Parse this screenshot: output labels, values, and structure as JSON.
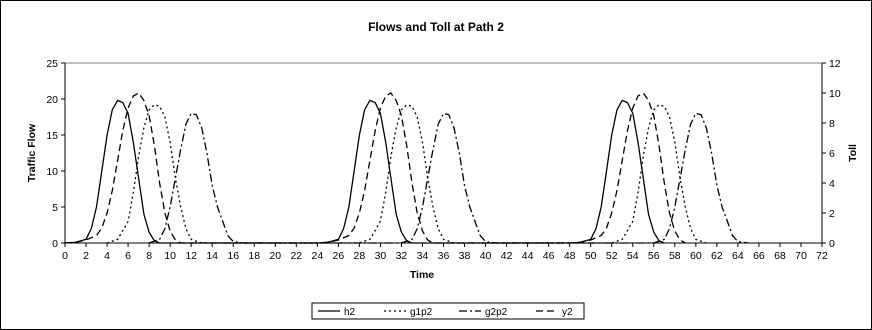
{
  "chart_data": {
    "type": "line",
    "title": "Flows and Toll at Path 2",
    "xlabel": "Time",
    "ylabel": "Traffic Flow",
    "y2label": "Toll",
    "xlim": [
      0,
      72
    ],
    "ylim": [
      0,
      25
    ],
    "y2lim": [
      0,
      12
    ],
    "x_ticks": [
      0,
      2,
      4,
      6,
      8,
      10,
      12,
      14,
      16,
      18,
      20,
      22,
      24,
      26,
      28,
      30,
      32,
      34,
      36,
      38,
      40,
      42,
      44,
      46,
      48,
      50,
      52,
      54,
      56,
      58,
      60,
      62,
      64,
      66,
      68,
      70,
      72
    ],
    "y_ticks": [
      0,
      5,
      10,
      15,
      20,
      25
    ],
    "y2_ticks": [
      0,
      2,
      4,
      6,
      8,
      10,
      12
    ],
    "grid": false,
    "legend_position": "bottom",
    "series": [
      {
        "name": "h2",
        "axis": "left",
        "dash": "solid",
        "points": [
          [
            0,
            0
          ],
          [
            1,
            0.1
          ],
          [
            2,
            0.5
          ],
          [
            2.5,
            2
          ],
          [
            3,
            5
          ],
          [
            3.5,
            10
          ],
          [
            4,
            15
          ],
          [
            4.5,
            18.5
          ],
          [
            5,
            19.8
          ],
          [
            5.5,
            19.5
          ],
          [
            6,
            18
          ],
          [
            6.5,
            14
          ],
          [
            7,
            9
          ],
          [
            7.5,
            4
          ],
          [
            8,
            1.5
          ],
          [
            8.5,
            0.3
          ],
          [
            9,
            0
          ],
          [
            24,
            0
          ],
          [
            25,
            0.1
          ],
          [
            26,
            0.5
          ],
          [
            26.5,
            2
          ],
          [
            27,
            5
          ],
          [
            27.5,
            10
          ],
          [
            28,
            15
          ],
          [
            28.5,
            18.5
          ],
          [
            29,
            19.8
          ],
          [
            29.5,
            19.5
          ],
          [
            30,
            18
          ],
          [
            30.5,
            14
          ],
          [
            31,
            9
          ],
          [
            31.5,
            4
          ],
          [
            32,
            1.5
          ],
          [
            32.5,
            0.3
          ],
          [
            33,
            0
          ],
          [
            48,
            0
          ],
          [
            49,
            0.1
          ],
          [
            50,
            0.5
          ],
          [
            50.5,
            2
          ],
          [
            51,
            5
          ],
          [
            51.5,
            10
          ],
          [
            52,
            15
          ],
          [
            52.5,
            18.5
          ],
          [
            53,
            19.8
          ],
          [
            53.5,
            19.5
          ],
          [
            54,
            18
          ],
          [
            54.5,
            14
          ],
          [
            55,
            9
          ],
          [
            55.5,
            4
          ],
          [
            56,
            1.5
          ],
          [
            56.5,
            0.3
          ],
          [
            57,
            0
          ]
        ]
      },
      {
        "name": "g1p2",
        "axis": "left",
        "dash": "dot",
        "points": [
          [
            4,
            0
          ],
          [
            5,
            0.5
          ],
          [
            6,
            3
          ],
          [
            6.5,
            7
          ],
          [
            7,
            12
          ],
          [
            7.5,
            16
          ],
          [
            8,
            18.5
          ],
          [
            8.5,
            19.2
          ],
          [
            9,
            19
          ],
          [
            9.5,
            17.5
          ],
          [
            10,
            14
          ],
          [
            10.5,
            9
          ],
          [
            11,
            5
          ],
          [
            11.5,
            2
          ],
          [
            12,
            0.5
          ],
          [
            13,
            0
          ],
          [
            28,
            0
          ],
          [
            29,
            0.5
          ],
          [
            30,
            3
          ],
          [
            30.5,
            7
          ],
          [
            31,
            12
          ],
          [
            31.5,
            16
          ],
          [
            32,
            18.5
          ],
          [
            32.5,
            19.2
          ],
          [
            33,
            19
          ],
          [
            33.5,
            17.5
          ],
          [
            34,
            14
          ],
          [
            34.5,
            9
          ],
          [
            35,
            5
          ],
          [
            35.5,
            2
          ],
          [
            36,
            0.5
          ],
          [
            37,
            0
          ],
          [
            52,
            0
          ],
          [
            53,
            0.5
          ],
          [
            54,
            3
          ],
          [
            54.5,
            7
          ],
          [
            55,
            12
          ],
          [
            55.5,
            16
          ],
          [
            56,
            18.5
          ],
          [
            56.5,
            19.2
          ],
          [
            57,
            19
          ],
          [
            57.5,
            17.5
          ],
          [
            58,
            14
          ],
          [
            58.5,
            9
          ],
          [
            59,
            5
          ],
          [
            59.5,
            2
          ],
          [
            60,
            0.5
          ],
          [
            61,
            0
          ]
        ]
      },
      {
        "name": "g2p2",
        "axis": "left",
        "dash": "dashdot",
        "points": [
          [
            8,
            0
          ],
          [
            9,
            0.5
          ],
          [
            9.5,
            2
          ],
          [
            10,
            5
          ],
          [
            10.5,
            9
          ],
          [
            11,
            13
          ],
          [
            11.5,
            16.5
          ],
          [
            12,
            18
          ],
          [
            12.5,
            17.8
          ],
          [
            13,
            16
          ],
          [
            13.5,
            12.5
          ],
          [
            14,
            8
          ],
          [
            14.5,
            5
          ],
          [
            15,
            3
          ],
          [
            15.5,
            1
          ],
          [
            16,
            0.2
          ],
          [
            17,
            0
          ],
          [
            32,
            0
          ],
          [
            33,
            0.5
          ],
          [
            33.5,
            2
          ],
          [
            34,
            5
          ],
          [
            34.5,
            9
          ],
          [
            35,
            13
          ],
          [
            35.5,
            16.5
          ],
          [
            36,
            18
          ],
          [
            36.5,
            17.8
          ],
          [
            37,
            16
          ],
          [
            37.5,
            12.5
          ],
          [
            38,
            8
          ],
          [
            38.5,
            5
          ],
          [
            39,
            3
          ],
          [
            39.5,
            1
          ],
          [
            40,
            0.2
          ],
          [
            41,
            0
          ],
          [
            56,
            0
          ],
          [
            57,
            0.5
          ],
          [
            57.5,
            2
          ],
          [
            58,
            5
          ],
          [
            58.5,
            9
          ],
          [
            59,
            13
          ],
          [
            59.5,
            16.5
          ],
          [
            60,
            18
          ],
          [
            60.5,
            17.8
          ],
          [
            61,
            16
          ],
          [
            61.5,
            12.5
          ],
          [
            62,
            8
          ],
          [
            62.5,
            5
          ],
          [
            63,
            3
          ],
          [
            63.5,
            1
          ],
          [
            64,
            0.2
          ],
          [
            65,
            0
          ]
        ]
      },
      {
        "name": "y2",
        "axis": "right",
        "dash": "dash",
        "points": [
          [
            0,
            0
          ],
          [
            1,
            0.05
          ],
          [
            2,
            0.2
          ],
          [
            3,
            0.5
          ],
          [
            3.5,
            1
          ],
          [
            4,
            2
          ],
          [
            4.5,
            3.5
          ],
          [
            5,
            5.5
          ],
          [
            5.5,
            7.5
          ],
          [
            6,
            9
          ],
          [
            6.5,
            9.8
          ],
          [
            7,
            10
          ],
          [
            7.5,
            9.5
          ],
          [
            8,
            8.5
          ],
          [
            8.5,
            6.5
          ],
          [
            9,
            4
          ],
          [
            9.5,
            2
          ],
          [
            10,
            0.8
          ],
          [
            10.5,
            0.2
          ],
          [
            11,
            0
          ],
          [
            24,
            0
          ],
          [
            25,
            0.05
          ],
          [
            26,
            0.2
          ],
          [
            27,
            0.5
          ],
          [
            27.5,
            1
          ],
          [
            28,
            2
          ],
          [
            28.5,
            3.5
          ],
          [
            29,
            5.5
          ],
          [
            29.5,
            7.5
          ],
          [
            30,
            9
          ],
          [
            30.5,
            9.8
          ],
          [
            31,
            10
          ],
          [
            31.5,
            9.5
          ],
          [
            32,
            8.5
          ],
          [
            32.5,
            6.5
          ],
          [
            33,
            4
          ],
          [
            33.5,
            2
          ],
          [
            34,
            0.8
          ],
          [
            34.5,
            0.2
          ],
          [
            35,
            0
          ],
          [
            48,
            0
          ],
          [
            49,
            0.05
          ],
          [
            50,
            0.2
          ],
          [
            51,
            0.5
          ],
          [
            51.5,
            1
          ],
          [
            52,
            2
          ],
          [
            52.5,
            3.5
          ],
          [
            53,
            5.5
          ],
          [
            53.5,
            7.5
          ],
          [
            54,
            9
          ],
          [
            54.5,
            9.8
          ],
          [
            55,
            10
          ],
          [
            55.5,
            9.5
          ],
          [
            56,
            8.5
          ],
          [
            56.5,
            6.5
          ],
          [
            57,
            4
          ],
          [
            57.5,
            2
          ],
          [
            58,
            0.8
          ],
          [
            58.5,
            0.2
          ],
          [
            59,
            0
          ]
        ]
      }
    ]
  }
}
